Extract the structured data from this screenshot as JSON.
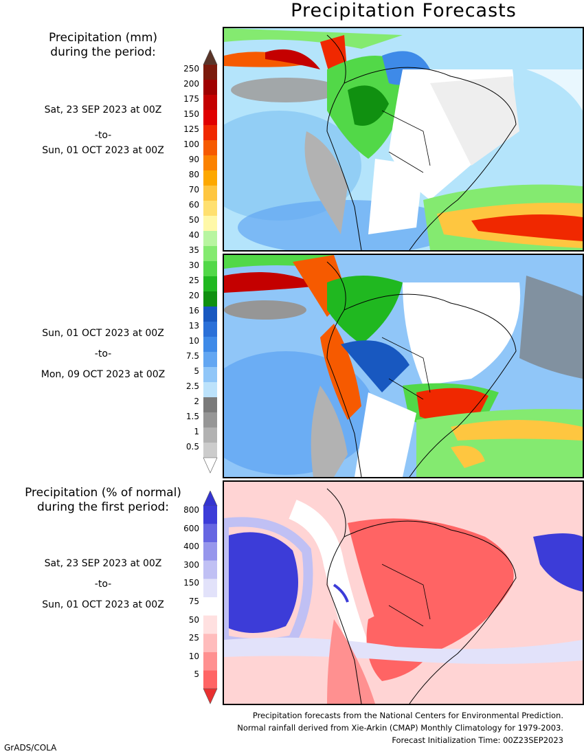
{
  "title": "Precipitation Forecasts",
  "amount_legend": {
    "heading_line1": "Precipitation (mm)",
    "heading_line2": "during the period:",
    "labels": [
      "250",
      "200",
      "175",
      "150",
      "125",
      "100",
      "90",
      "80",
      "70",
      "60",
      "50",
      "40",
      "35",
      "30",
      "25",
      "20",
      "16",
      "13",
      "10",
      "7.5",
      "5",
      "2.5",
      "2",
      "1.5",
      "1",
      "0.5"
    ],
    "colors": [
      "#7b1a0c",
      "#a00000",
      "#c40000",
      "#e00000",
      "#f02800",
      "#f65a00",
      "#fb8200",
      "#fda800",
      "#fec640",
      "#ffe070",
      "#fff8a8",
      "#b8f5a0",
      "#84ea70",
      "#52d848",
      "#20b820",
      "#109010",
      "#1858c0",
      "#2a70d8",
      "#3e8ae8",
      "#62a6f2",
      "#90c6f8",
      "#bce2fb",
      "#7a7a7a",
      "#969696",
      "#b2b2b2",
      "#cccccc"
    ],
    "top_cap_color": "#5a3428",
    "bottom_cap_color": "#ffffff"
  },
  "percent_legend": {
    "heading_line1": "Precipitation (% of normal)",
    "heading_line2": "during the first period:",
    "labels": [
      "800",
      "600",
      "400",
      "300",
      "150",
      "75",
      "50",
      "25",
      "10",
      "5"
    ],
    "colors": [
      "#3c3cd8",
      "#6666e2",
      "#9696ec",
      "#c0c0f4",
      "#e2e2fa",
      "#ffffff",
      "#ffe0e0",
      "#ffbcbc",
      "#ff9090",
      "#ff6464"
    ],
    "top_cap_color": "#3434d0",
    "bottom_cap_color": "#e83030"
  },
  "periods": [
    {
      "start": "Sat, 23 SEP 2023 at 00Z",
      "sep": "-to-",
      "end": "Sun, 01 OCT 2023 at 00Z"
    },
    {
      "start": "Sun, 01 OCT 2023 at 00Z",
      "sep": "-to-",
      "end": "Mon, 09 OCT 2023 at 00Z"
    },
    {
      "start": "Sat, 23 SEP 2023 at 00Z",
      "sep": "-to-",
      "end": "Sun, 01 OCT 2023 at 00Z"
    }
  ],
  "notes": {
    "line1": "Precipitation forecasts from the National Centers for Environmental Prediction.",
    "line2": "Normal rainfall derived from Xie-Arkin (CMAP) Monthly Climatology for 1979-2003.",
    "line3": "Forecast Initialization Time: 00Z23SEP2023"
  },
  "credit": "GrADS/COLA"
}
